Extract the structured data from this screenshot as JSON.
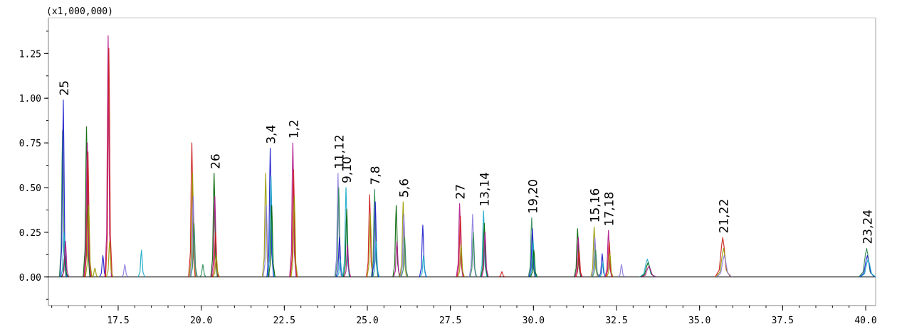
{
  "chart_data": {
    "type": "line",
    "title": "",
    "xlabel": "",
    "ylabel": "",
    "y_unit_label": "(x1,000,000)",
    "xlim": [
      15.4,
      40.3
    ],
    "ylim": [
      -0.16,
      1.45
    ],
    "x_ticks": [
      17.5,
      20.0,
      22.5,
      25.0,
      27.5,
      30.0,
      32.5,
      35.0,
      37.5,
      40.0
    ],
    "x_tick_labels": [
      "17.5",
      "20.0",
      "22.5",
      "25.0",
      "27.5",
      "30.0",
      "32.5",
      "35.0",
      "37.5",
      "40.0"
    ],
    "y_ticks": [
      0.0,
      0.25,
      0.5,
      0.75,
      1.0,
      1.25
    ],
    "y_tick_labels": [
      "0.00",
      "0.25",
      "0.50",
      "0.75",
      "1.00",
      "1.25"
    ],
    "grid": false,
    "legend": "none",
    "colors": {
      "green": "#2e8b57",
      "dark_green": "#006400",
      "olive": "#9a9a00",
      "blue": "#1a1acc",
      "magenta": "#b0148c",
      "violet": "#8a7adf",
      "cyan": "#17a8c8",
      "red": "#cc1a1a",
      "black": "#000000"
    },
    "series_colors": [
      "#2e8b57",
      "#006400",
      "#9a9a00",
      "#1a1acc",
      "#b0148c",
      "#8a7adf",
      "#17a8c8",
      "#cc1a1a"
    ],
    "peaks": [
      {
        "x": 15.87,
        "heights": [
          0.82,
          0.99,
          0.25,
          0.12,
          0.2
        ]
      },
      {
        "x": 16.58,
        "heights": [
          0.84,
          0.75,
          0.7,
          0.4
        ]
      },
      {
        "x": 16.8,
        "heights": [
          0.05
        ]
      },
      {
        "x": 17.04,
        "heights": [
          0.12
        ]
      },
      {
        "x": 17.22,
        "heights": [
          1.35,
          1.28,
          0.2
        ]
      },
      {
        "x": 17.7,
        "heights": [
          0.07
        ]
      },
      {
        "x": 18.2,
        "heights": [
          0.15
        ]
      },
      {
        "x": 19.75,
        "heights": [
          0.75,
          0.58,
          0.45,
          0.3
        ]
      },
      {
        "x": 20.05,
        "heights": [
          0.07
        ]
      },
      {
        "x": 20.42,
        "heights": [
          0.58,
          0.45,
          0.25,
          0.12
        ]
      },
      {
        "x": 21.95,
        "heights": [
          0.58,
          0.4
        ]
      },
      {
        "x": 22.1,
        "heights": [
          0.72,
          0.56,
          0.4
        ]
      },
      {
        "x": 22.78,
        "heights": [
          0.75,
          0.6,
          0.45
        ]
      },
      {
        "x": 24.15,
        "heights": [
          0.58,
          0.5,
          0.22,
          0.1
        ]
      },
      {
        "x": 24.38,
        "heights": [
          0.5,
          0.38,
          0.18
        ]
      },
      {
        "x": 25.08,
        "heights": [
          0.46,
          0.35
        ]
      },
      {
        "x": 25.24,
        "heights": [
          0.49,
          0.42,
          0.2
        ]
      },
      {
        "x": 25.88,
        "heights": [
          0.4,
          0.2
        ]
      },
      {
        "x": 26.1,
        "heights": [
          0.42,
          0.35,
          0.22
        ]
      },
      {
        "x": 26.68,
        "heights": [
          0.29,
          0.12
        ]
      },
      {
        "x": 27.8,
        "heights": [
          0.41,
          0.34,
          0.18
        ]
      },
      {
        "x": 28.18,
        "heights": [
          0.35,
          0.25
        ]
      },
      {
        "x": 28.52,
        "heights": [
          0.37,
          0.3,
          0.25
        ]
      },
      {
        "x": 29.05,
        "heights": [
          0.03
        ]
      },
      {
        "x": 29.98,
        "heights": [
          0.33,
          0.27,
          0.2,
          0.15
        ]
      },
      {
        "x": 31.35,
        "heights": [
          0.27,
          0.22,
          0.15
        ]
      },
      {
        "x": 31.85,
        "heights": [
          0.28,
          0.22,
          0.15
        ]
      },
      {
        "x": 32.08,
        "heights": [
          0.13,
          0.08
        ]
      },
      {
        "x": 32.28,
        "heights": [
          0.26,
          0.2,
          0.13
        ]
      },
      {
        "x": 32.65,
        "heights": [
          0.07
        ]
      },
      {
        "x": 33.45,
        "heights": [
          0.1,
          0.08,
          0.06
        ]
      },
      {
        "x": 35.72,
        "heights": [
          0.22,
          0.16,
          0.12
        ]
      },
      {
        "x": 40.05,
        "heights": [
          0.16,
          0.12,
          0.1
        ]
      }
    ],
    "annotations": [
      {
        "label": "25",
        "x": 15.87
      },
      {
        "label": "26",
        "x": 20.42
      },
      {
        "label": "3,4",
        "x": 22.1
      },
      {
        "label": "1,2",
        "x": 22.78
      },
      {
        "label": "11,12",
        "x": 24.15
      },
      {
        "label": "9,10",
        "x": 24.38
      },
      {
        "label": "7,8",
        "x": 25.24
      },
      {
        "label": "5,6",
        "x": 26.1
      },
      {
        "label": "27",
        "x": 27.8
      },
      {
        "label": "13,14",
        "x": 28.52
      },
      {
        "label": "19,20",
        "x": 29.98
      },
      {
        "label": "15,16",
        "x": 31.85
      },
      {
        "label": "17,18",
        "x": 32.28
      },
      {
        "label": "21,22",
        "x": 35.72
      },
      {
        "label": "23,24",
        "x": 40.05
      }
    ]
  }
}
